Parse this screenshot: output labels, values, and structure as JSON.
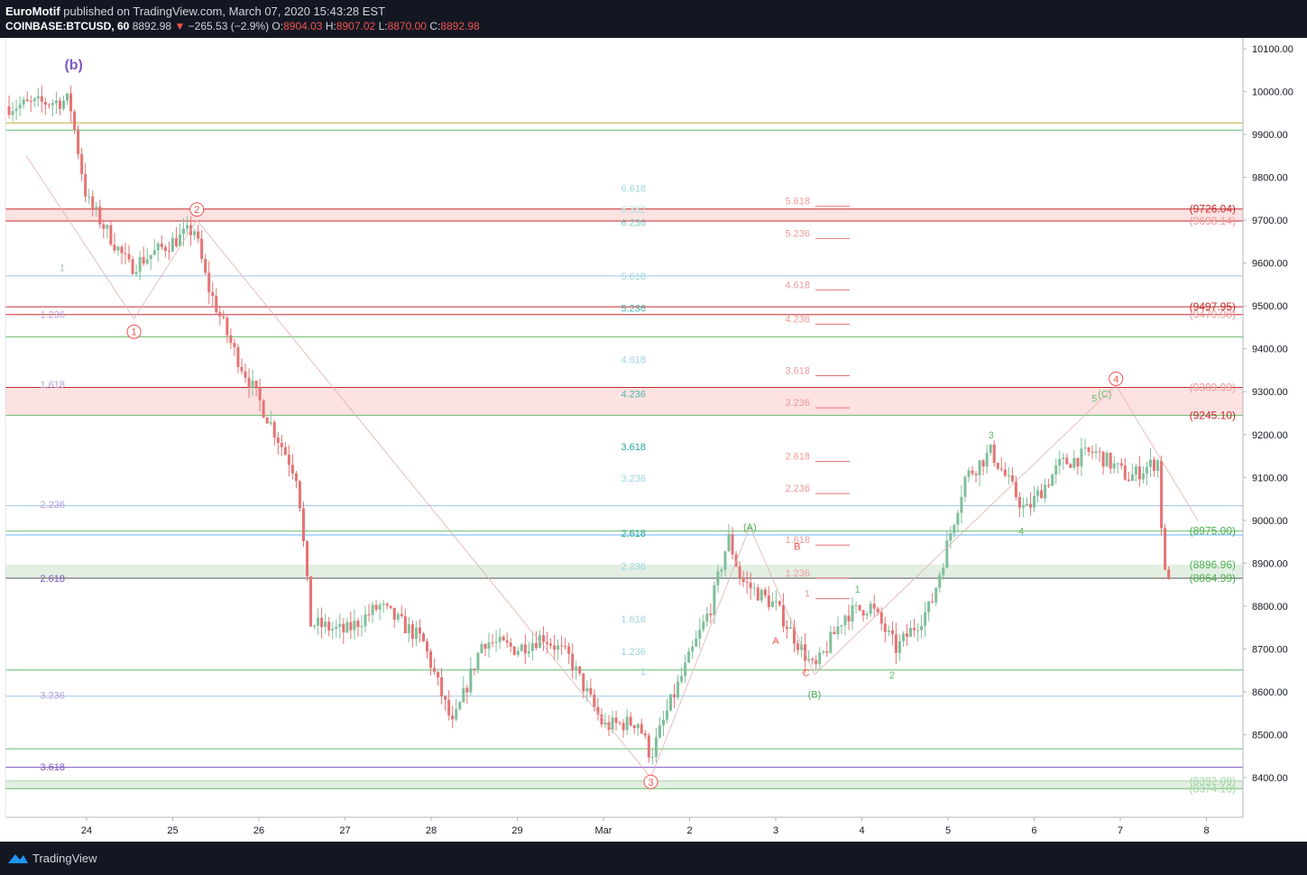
{
  "header": {
    "author": "EuroMotif",
    "published_text": "published on TradingView.com, March 07, 2020 15:43:28 EST",
    "symbol": "COINBASE:BTCUSD, 60",
    "last": "8892.98",
    "change_arrow": "▼",
    "change": "−265.53 (−2.9%)",
    "o_label": "O:",
    "o": "8904.03",
    "h_label": "H:",
    "h": "8907.02",
    "l_label": "L:",
    "l": "8870.00",
    "c_label": "C:",
    "c": "8892.98"
  },
  "footer": {
    "brand": "TradingView",
    "logo_icon": "tradingview-logo-icon"
  },
  "colors": {
    "up": "#26a69a",
    "down": "#ef5350",
    "up_fill": "#7fbf9a",
    "down_fill": "#e57373",
    "fib_blue": "#9fc5e8",
    "purple": "#7e57c2",
    "red_label": "#c62828",
    "green_label": "#4caf50"
  },
  "chart_data": {
    "type": "candlestick",
    "title": "COINBASE:BTCUSD, 60",
    "ylim": [
      8310,
      10150
    ],
    "y_ticks": [
      "10100.00",
      "10000.00",
      "9900.00",
      "9800.00",
      "9700.00",
      "9600.00",
      "9500.00",
      "9400.00",
      "9300.00",
      "9200.00",
      "9100.00",
      "9000.00",
      "8900.00",
      "8800.00",
      "8700.00",
      "8600.00",
      "8500.00",
      "8400.00"
    ],
    "x_labels": [
      "24",
      "25",
      "26",
      "27",
      "28",
      "29",
      "Mar",
      "2",
      "3",
      "4",
      "5",
      "6",
      "7",
      "8"
    ],
    "price_path": [
      [
        0,
        9900
      ],
      [
        4,
        9870
      ],
      [
        8,
        9920
      ],
      [
        12,
        9880
      ],
      [
        16,
        9860
      ],
      [
        20,
        9900
      ],
      [
        23.8,
        9980
      ],
      [
        24,
        9750
      ],
      [
        24.5,
        9590
      ],
      [
        25.25,
        9680
      ],
      [
        25.4,
        9550
      ],
      [
        25.7,
        9400
      ],
      [
        26.2,
        9200
      ],
      [
        26.45,
        9100
      ],
      [
        26.6,
        8760
      ],
      [
        27,
        8740
      ],
      [
        27.4,
        8800
      ],
      [
        27.9,
        8720
      ],
      [
        28.25,
        8520
      ],
      [
        28.6,
        8720
      ],
      [
        29.0,
        8700
      ],
      [
        29.3,
        8730
      ],
      [
        29.6,
        8680
      ],
      [
        30.0,
        8520
      ],
      [
        30.4,
        8530
      ],
      [
        30.55,
        8450
      ],
      [
        30.75,
        8560
      ],
      [
        31.0,
        8680
      ],
      [
        31.25,
        8800
      ],
      [
        31.45,
        8960
      ],
      [
        31.6,
        8860
      ],
      [
        32.0,
        8800
      ],
      [
        32.45,
        8650
      ],
      [
        32.8,
        8780
      ],
      [
        33.1,
        8800
      ],
      [
        33.4,
        8700
      ],
      [
        33.8,
        8800
      ],
      [
        34.2,
        9100
      ],
      [
        34.5,
        9160
      ],
      [
        34.9,
        9020
      ],
      [
        35.3,
        9130
      ],
      [
        35.7,
        9160
      ],
      [
        36.1,
        9100
      ],
      [
        36.45,
        9140
      ],
      [
        36.5,
        8870
      ],
      [
        36.6,
        8880
      ]
    ],
    "up_color": "#26a69a",
    "down_color": "#ef5350",
    "horizontal_levels": [
      {
        "price": 9927,
        "color": "#c9b037"
      },
      {
        "price": 9910,
        "color": "#66bb6a"
      },
      {
        "price": 9726.04,
        "color": "#c62828"
      },
      {
        "price": 9698.14,
        "color": "#c62828"
      },
      {
        "price": 9570,
        "color": "#9fc5e8"
      },
      {
        "price": 9497.95,
        "color": "#c62828"
      },
      {
        "price": 9479.98,
        "color": "#c62828"
      },
      {
        "price": 9428,
        "color": "#66bb6a"
      },
      {
        "price": 9309.99,
        "color": "#c62828"
      },
      {
        "price": 9245.1,
        "color": "#66bb6a"
      },
      {
        "price": 9034,
        "color": "#9fc5e8"
      },
      {
        "price": 8975.0,
        "color": "#66bb6a"
      },
      {
        "price": 8966,
        "color": "#64b5f6"
      },
      {
        "price": 8864.99,
        "color": "#555555"
      },
      {
        "price": 8651,
        "color": "#66bb6a"
      },
      {
        "price": 8590,
        "color": "#9fc5e8"
      },
      {
        "price": 8467,
        "color": "#66bb6a"
      },
      {
        "price": 8424,
        "color": "#7e57c2"
      },
      {
        "price": 8392.09,
        "color": "#a5d6a7"
      },
      {
        "price": 8374.1,
        "color": "#66bb6a"
      }
    ],
    "zones": [
      {
        "from": 9698.14,
        "to": 9726.04,
        "color": "#fde2e2"
      },
      {
        "from": 9245.1,
        "to": 9309.99,
        "color": "#fde2e2"
      },
      {
        "from": 8864.99,
        "to": 8896.96,
        "color": "#e3efe3"
      },
      {
        "from": 8374.1,
        "to": 8392.09,
        "color": "#e3efe3"
      }
    ],
    "price_labels": [
      {
        "text": "(9726.04)",
        "price": 9726.04,
        "color": "#c62828"
      },
      {
        "text": "(9698.14)",
        "price": 9698.14,
        "color": "#ef9a9a"
      },
      {
        "text": "(9497.95)",
        "price": 9497.95,
        "color": "#c62828"
      },
      {
        "text": "(9479.98)",
        "price": 9479.98,
        "color": "#ef9a9a"
      },
      {
        "text": "(9309.99)",
        "price": 9309.99,
        "color": "#ef9a9a"
      },
      {
        "text": "(9245.10)",
        "price": 9245.1,
        "color": "#c62828"
      },
      {
        "text": "(8975.00)",
        "price": 8975.0,
        "color": "#4caf50"
      },
      {
        "text": "(8896.96)",
        "price": 8896.96,
        "color": "#4caf50"
      },
      {
        "text": "(8864.99)",
        "price": 8864.99,
        "color": "#4caf50"
      },
      {
        "text": "(8392.09)",
        "price": 8392.09,
        "color": "#a5d6a7"
      },
      {
        "text": "(8374.10)",
        "price": 8374.1,
        "color": "#a5d6a7"
      }
    ],
    "fib_left": [
      {
        "text": "1",
        "price": 9590,
        "color": "#b0bec5"
      },
      {
        "text": "1.236",
        "price": 9480,
        "color": "#b39ddb"
      },
      {
        "text": "1.618",
        "price": 9317,
        "color": "#b39ddb"
      },
      {
        "text": "2.236",
        "price": 9037,
        "color": "#b39ddb"
      },
      {
        "text": "2.618",
        "price": 8865,
        "color": "#7e57c2"
      },
      {
        "text": "3.236",
        "price": 8592,
        "color": "#b39ddb"
      },
      {
        "text": "3.618",
        "price": 8425,
        "color": "#7e57c2"
      }
    ],
    "fib_mid": [
      {
        "text": "6.618",
        "price": 9775,
        "color": "#9fd5e0"
      },
      {
        "text": "6.382",
        "price": 9725,
        "color": "#b2dfdb"
      },
      {
        "text": "6.236",
        "price": 9695,
        "color": "#80cbc4"
      },
      {
        "text": "5.618",
        "price": 9570,
        "color": "#9fd5e0"
      },
      {
        "text": "5.236",
        "price": 9495,
        "color": "#4db6ac"
      },
      {
        "text": "4.618",
        "price": 9375,
        "color": "#9fd5e0"
      },
      {
        "text": "4.236",
        "price": 9295,
        "color": "#4db6ac"
      },
      {
        "text": "3.618",
        "price": 9172,
        "color": "#26a69a"
      },
      {
        "text": "3.236",
        "price": 9098,
        "color": "#9fd5e0"
      },
      {
        "text": "2.618",
        "price": 8970,
        "color": "#26a69a"
      },
      {
        "text": "2.236",
        "price": 8893,
        "color": "#9fd5e0"
      },
      {
        "text": "1.618",
        "price": 8770,
        "color": "#9fd5e0"
      },
      {
        "text": "1.236",
        "price": 8695,
        "color": "#9fd5e0"
      },
      {
        "text": "1",
        "price": 8648,
        "color": "#9fd5e0"
      }
    ],
    "fib_right": [
      {
        "text": "5.618",
        "price": 9745,
        "color": "#ef9a9a"
      },
      {
        "text": "5.236",
        "price": 9670,
        "color": "#ef9a9a"
      },
      {
        "text": "4.618",
        "price": 9550,
        "color": "#ef9a9a"
      },
      {
        "text": "4.236",
        "price": 9470,
        "color": "#ef9a9a"
      },
      {
        "text": "3.618",
        "price": 9350,
        "color": "#ef9a9a"
      },
      {
        "text": "3.236",
        "price": 9275,
        "color": "#ef9a9a"
      },
      {
        "text": "2.618",
        "price": 9150,
        "color": "#ef9a9a"
      },
      {
        "text": "2.236",
        "price": 9075,
        "color": "#ef9a9a"
      },
      {
        "text": "1.618",
        "price": 8955,
        "color": "#ef9a9a"
      },
      {
        "text": "1.236",
        "price": 8878,
        "color": "#ef9a9a"
      },
      {
        "text": "1",
        "price": 8830,
        "color": "#ef9a9a"
      }
    ],
    "wave_labels": [
      {
        "text": "(b)",
        "x": 23.85,
        "price": 10060,
        "color": "#7e57c2",
        "size": 16,
        "bold": true
      },
      {
        "text": "1",
        "x": 24.55,
        "price": 9440,
        "color": "#ef5350",
        "circle": true
      },
      {
        "text": "2",
        "x": 25.28,
        "price": 9725,
        "color": "#ef5350",
        "circle": true
      },
      {
        "text": "3",
        "x": 30.55,
        "price": 8390,
        "color": "#ef5350",
        "circle": true
      },
      {
        "text": "4",
        "x": 35.95,
        "price": 9330,
        "color": "#ef5350",
        "circle": true
      },
      {
        "text": "(A)",
        "x": 31.7,
        "price": 8985,
        "color": "#4caf50"
      },
      {
        "text": "B",
        "x": 32.25,
        "price": 8940,
        "color": "#ef5350"
      },
      {
        "text": "A",
        "x": 32.0,
        "price": 8720,
        "color": "#ef5350"
      },
      {
        "text": "C",
        "x": 32.35,
        "price": 8645,
        "color": "#ef5350"
      },
      {
        "text": "(B)",
        "x": 32.45,
        "price": 8595,
        "color": "#4caf50"
      },
      {
        "text": "1",
        "x": 32.95,
        "price": 8840,
        "color": "#66bb6a"
      },
      {
        "text": "2",
        "x": 33.35,
        "price": 8640,
        "color": "#66bb6a"
      },
      {
        "text": "3",
        "x": 34.5,
        "price": 9200,
        "color": "#66bb6a"
      },
      {
        "text": "4",
        "x": 34.85,
        "price": 8975,
        "color": "#66bb6a"
      },
      {
        "text": "5",
        "x": 35.7,
        "price": 9285,
        "color": "#66bb6a"
      },
      {
        "text": "(C)",
        "x": 35.82,
        "price": 9295,
        "color": "#66bb6a"
      }
    ]
  }
}
